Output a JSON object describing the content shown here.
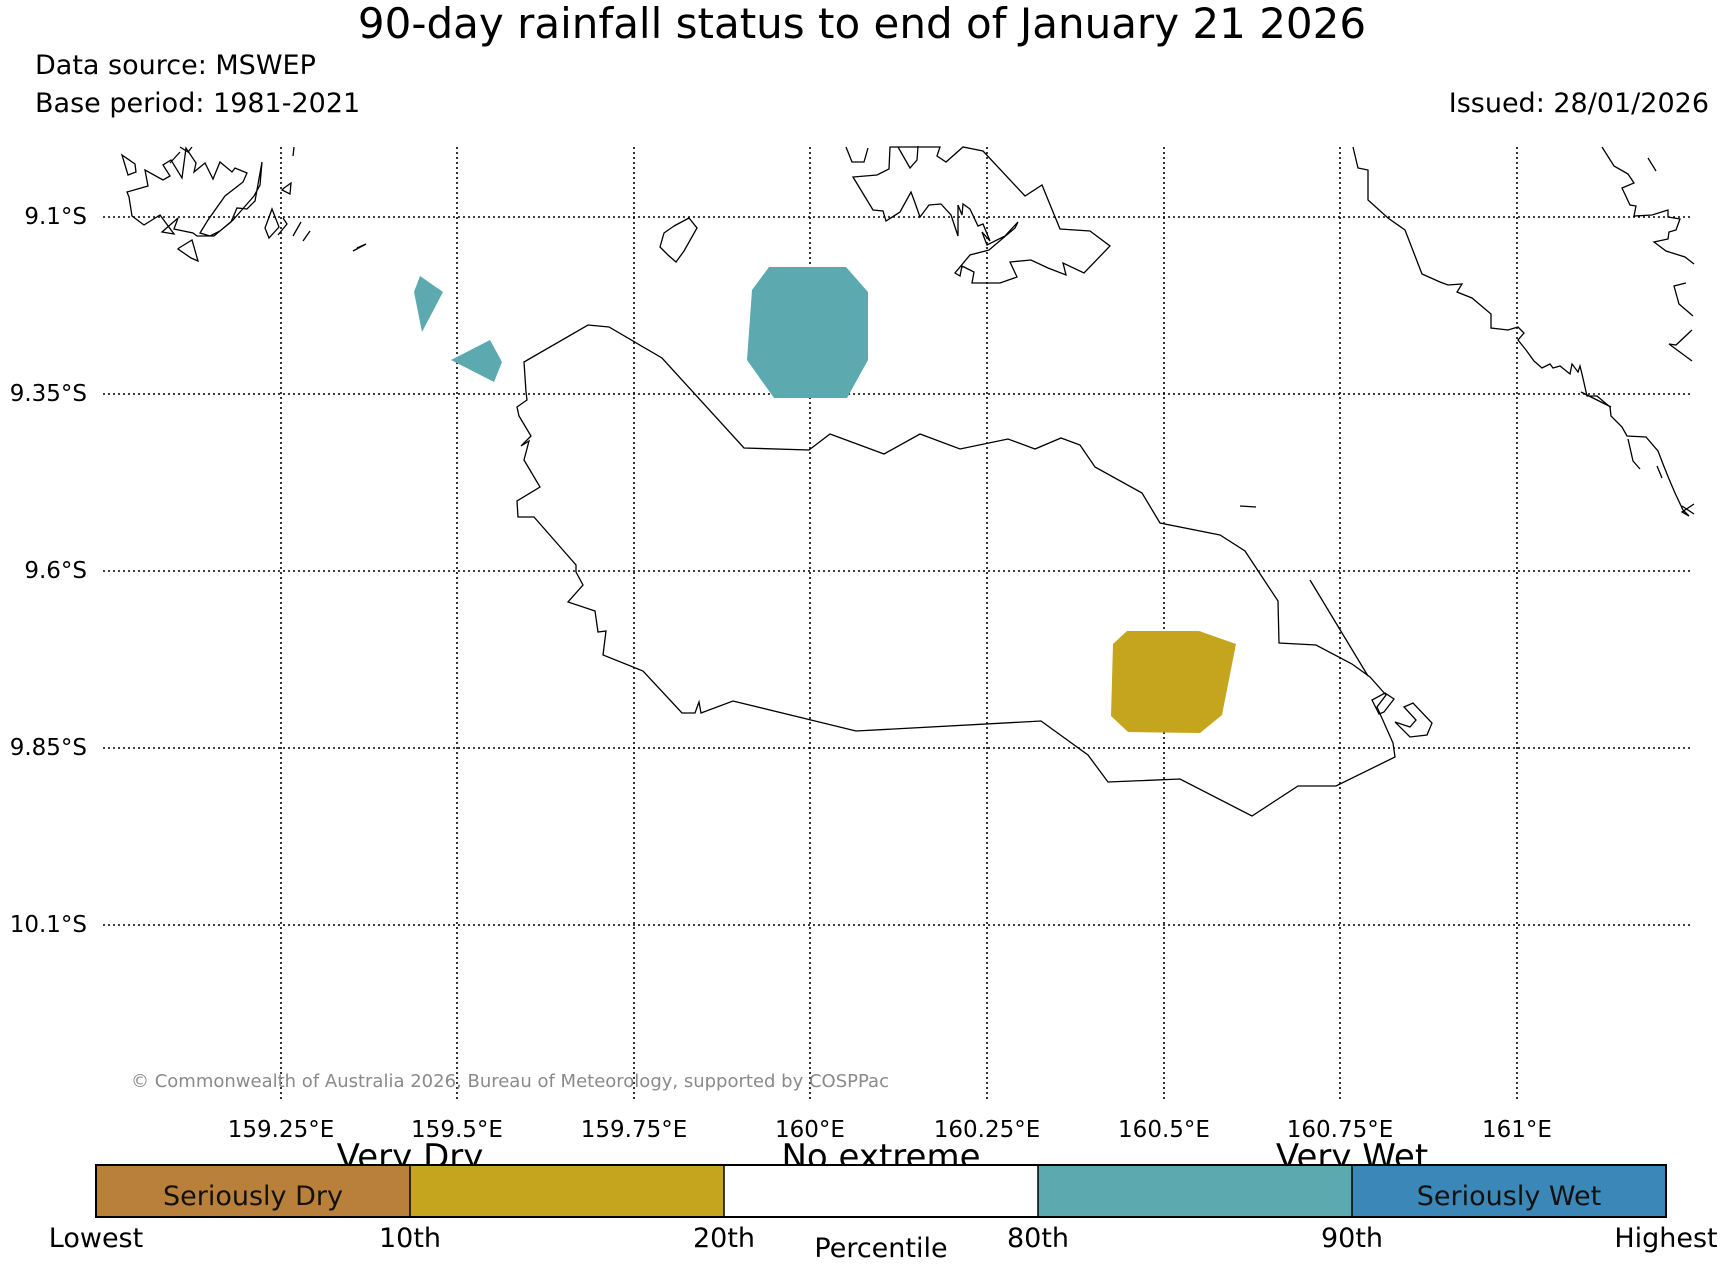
{
  "header": {
    "title": "90-day rainfall status to end of January 21 2026",
    "data_source": "Data source: MSWEP",
    "base_period": "Base period: 1981-2021",
    "issued": "Issued: 28/01/2026"
  },
  "map": {
    "lon_range": [
      159.0,
      161.25
    ],
    "lat_range": [
      -10.35,
      -9.0
    ],
    "lat_ticks": [
      {
        "value": -9.1,
        "label": "9.1°S"
      },
      {
        "value": -9.35,
        "label": "9.35°S"
      },
      {
        "value": -9.6,
        "label": "9.6°S"
      },
      {
        "value": -9.85,
        "label": "9.85°S"
      },
      {
        "value": -10.1,
        "label": "10.1°S"
      }
    ],
    "lon_ticks": [
      {
        "value": 159.25,
        "label": "159.25°E"
      },
      {
        "value": 159.5,
        "label": "159.5°E"
      },
      {
        "value": 159.75,
        "label": "159.75°E"
      },
      {
        "value": 160.0,
        "label": "160°E"
      },
      {
        "value": 160.25,
        "label": "160.25°E"
      },
      {
        "value": 160.5,
        "label": "160.5°E"
      },
      {
        "value": 160.75,
        "label": "160.75°E"
      },
      {
        "value": 161.0,
        "label": "161°E"
      }
    ],
    "gridlines": true,
    "regions": [
      {
        "category": "Very Wet",
        "color": "#5ca9b0",
        "location": "north-central coast"
      },
      {
        "category": "Very Wet",
        "color": "#5ca9b0",
        "location": "small islands west"
      },
      {
        "category": "Very Dry",
        "color": "#c5a51e",
        "location": "south-east interior"
      }
    ],
    "copyright": "© Commonwealth of Australia 2026, Bureau of Meteorology, supported by COSPPac"
  },
  "legend": {
    "upper_labels": [
      "Very Dry",
      "No extreme",
      "Very Wet"
    ],
    "segments": [
      {
        "label": "Seriously Dry",
        "color": "#b8803a"
      },
      {
        "label": "",
        "color": "#c5a51e"
      },
      {
        "label": "",
        "color": "#ffffff"
      },
      {
        "label": "",
        "color": "#5ca9b0"
      },
      {
        "label": "Seriously Wet",
        "color": "#3a87b8"
      }
    ],
    "ticks": [
      "Lowest",
      "10th",
      "20th",
      "80th",
      "90th",
      "Highest"
    ],
    "axis_label": "Percentile"
  }
}
